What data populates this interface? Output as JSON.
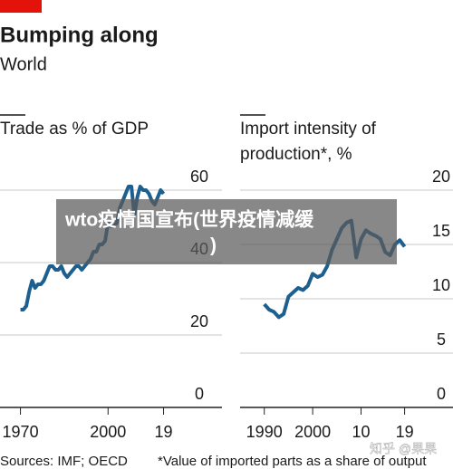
{
  "title": "Bumping along",
  "subtitle": "World",
  "source": "Sources: IMF; OECD",
  "note": "*Value of imported parts as a share of output",
  "banner": [
    "wto疫情国宣布(世界疫情减缓",
    ")"
  ],
  "watermark": "知乎 @果果",
  "chart_data": [
    {
      "type": "line",
      "label": [
        "Trade as % of GDP"
      ],
      "x": [
        1970,
        1971,
        1972,
        1973,
        1974,
        1975,
        1976,
        1977,
        1978,
        1979,
        1980,
        1981,
        1982,
        1983,
        1984,
        1985,
        1986,
        1987,
        1988,
        1989,
        1990,
        1991,
        1992,
        1993,
        1994,
        1995,
        1996,
        1997,
        1998,
        1999,
        2000,
        2001,
        2002,
        2003,
        2004,
        2005,
        2006,
        2007,
        2008,
        2009,
        2010,
        2011,
        2012,
        2013,
        2014,
        2015,
        2016,
        2017,
        2018,
        2019
      ],
      "series": [
        {
          "color": "#1d5f8e",
          "values": [
            27,
            27,
            28,
            32,
            35,
            33,
            34,
            34,
            35,
            37,
            39,
            39,
            38,
            38,
            39,
            37,
            36,
            37,
            38,
            39,
            39,
            38,
            39,
            40,
            41,
            43,
            43,
            45,
            45,
            46,
            51,
            50,
            50,
            51,
            55,
            57,
            59,
            61,
            61,
            53,
            58,
            61,
            60,
            60,
            59,
            57,
            56,
            58,
            60,
            59
          ]
        }
      ],
      "xlim": [
        1963,
        2039
      ],
      "xticks": [
        1970,
        2000,
        {
          "value": 2019,
          "label": "19"
        }
      ],
      "ylim": [
        0,
        60
      ],
      "yticks": [
        0,
        20,
        40,
        60
      ],
      "grid": true
    },
    {
      "type": "line",
      "label": [
        "Import intensity of",
        "production*, %"
      ],
      "x": [
        1990,
        1991,
        1992,
        1993,
        1994,
        1995,
        1996,
        1997,
        1998,
        1999,
        2000,
        2001,
        2002,
        2003,
        2004,
        2005,
        2006,
        2007,
        2008,
        2009,
        2010,
        2011,
        2012,
        2013,
        2014,
        2015,
        2016,
        2017,
        2018,
        2019
      ],
      "series": [
        {
          "color": "#1d5f8e",
          "values": [
            9.5,
            9,
            8.8,
            8.3,
            8.6,
            10.2,
            10.6,
            11,
            10.8,
            11.2,
            12.3,
            12,
            12.2,
            13,
            14.5,
            15.5,
            16.5,
            17,
            17.2,
            13.8,
            15.5,
            16.3,
            16,
            15.8,
            15.5,
            14.3,
            14,
            15,
            15.4,
            14.8
          ]
        }
      ],
      "xlim": [
        1985,
        2029
      ],
      "xticks": [
        1990,
        2000,
        {
          "value": 2010,
          "label": "10"
        },
        {
          "value": 2019,
          "label": "19"
        }
      ],
      "ylim": [
        0,
        20
      ],
      "yticks": [
        0,
        5,
        10,
        15,
        20
      ],
      "grid": true
    }
  ]
}
